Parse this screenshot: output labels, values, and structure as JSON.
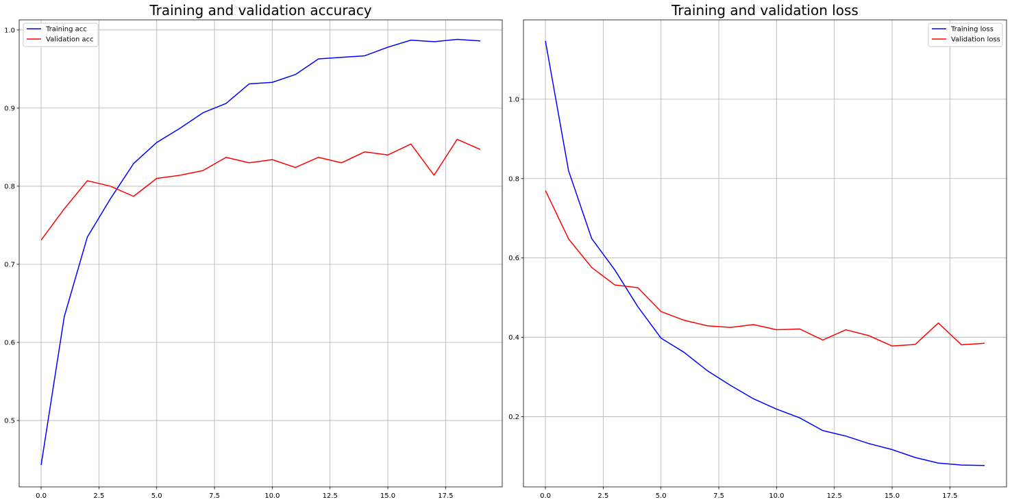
{
  "chart_data": [
    {
      "type": "line",
      "title": "Training and validation accuracy",
      "xlabel": "",
      "ylabel": "",
      "grid": true,
      "legend_position": "top-left",
      "xlim": [
        -0.95,
        19.95
      ],
      "ylim": [
        0.415,
        1.013
      ],
      "xticks": [
        0.0,
        2.5,
        5.0,
        7.5,
        10.0,
        12.5,
        15.0,
        17.5
      ],
      "xtick_labels": [
        "0.0",
        "2.5",
        "5.0",
        "7.5",
        "10.0",
        "12.5",
        "15.0",
        "17.5"
      ],
      "yticks": [
        0.5,
        0.6,
        0.7,
        0.8,
        0.9,
        1.0
      ],
      "ytick_labels": [
        "0.5",
        "0.6",
        "0.7",
        "0.8",
        "0.9",
        "1.0"
      ],
      "x": [
        0,
        1,
        2,
        3,
        4,
        5,
        6,
        7,
        8,
        9,
        10,
        11,
        12,
        13,
        14,
        15,
        16,
        17,
        18,
        19
      ],
      "series": [
        {
          "name": "Training acc",
          "color": "#0000ff",
          "values": [
            0.443,
            0.633,
            0.735,
            0.784,
            0.829,
            0.856,
            0.874,
            0.894,
            0.906,
            0.931,
            0.933,
            0.943,
            0.963,
            0.965,
            0.967,
            0.978,
            0.987,
            0.985,
            0.988,
            0.986
          ]
        },
        {
          "name": "Validation acc",
          "color": "#ff0000",
          "values": [
            0.731,
            0.771,
            0.807,
            0.8,
            0.787,
            0.81,
            0.814,
            0.82,
            0.837,
            0.83,
            0.834,
            0.824,
            0.837,
            0.83,
            0.844,
            0.84,
            0.854,
            0.814,
            0.86,
            0.847
          ]
        }
      ]
    },
    {
      "type": "line",
      "title": "Training and validation loss",
      "xlabel": "",
      "ylabel": "",
      "grid": true,
      "legend_position": "top-right",
      "xlim": [
        -0.95,
        19.95
      ],
      "ylim": [
        0.023,
        1.2
      ],
      "xticks": [
        0.0,
        2.5,
        5.0,
        7.5,
        10.0,
        12.5,
        15.0,
        17.5
      ],
      "xtick_labels": [
        "0.0",
        "2.5",
        "5.0",
        "7.5",
        "10.0",
        "12.5",
        "15.0",
        "17.5"
      ],
      "yticks": [
        0.2,
        0.4,
        0.6,
        0.8,
        1.0
      ],
      "ytick_labels": [
        "0.2",
        "0.4",
        "0.6",
        "0.8",
        "1.0"
      ],
      "x": [
        0,
        1,
        2,
        3,
        4,
        5,
        6,
        7,
        8,
        9,
        10,
        11,
        12,
        13,
        14,
        15,
        16,
        17,
        18,
        19
      ],
      "series": [
        {
          "name": "Training loss",
          "color": "#0000ff",
          "values": [
            1.147,
            0.82,
            0.649,
            0.57,
            0.477,
            0.398,
            0.362,
            0.316,
            0.279,
            0.245,
            0.219,
            0.197,
            0.165,
            0.151,
            0.132,
            0.117,
            0.097,
            0.083,
            0.078,
            0.077
          ]
        },
        {
          "name": "Validation loss",
          "color": "#ff0000",
          "values": [
            0.77,
            0.648,
            0.576,
            0.532,
            0.525,
            0.465,
            0.443,
            0.429,
            0.425,
            0.432,
            0.419,
            0.421,
            0.393,
            0.419,
            0.404,
            0.378,
            0.382,
            0.436,
            0.381,
            0.385
          ]
        }
      ]
    }
  ]
}
